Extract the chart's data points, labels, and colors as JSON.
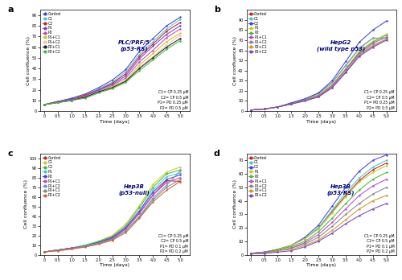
{
  "time": [
    0,
    0.5,
    1.0,
    1.5,
    2.0,
    2.5,
    3.0,
    3.5,
    4.0,
    4.5,
    5.0
  ],
  "panel_a": {
    "title": "PLC/PRF/5\n(p53-RS)",
    "note": "C1= CP 0.25 μM\nC2= CP 0.5 μM\nP1= PD 0.25 μM\nP2= PD 0.5 μM",
    "ylim": [
      0,
      95
    ],
    "yticks": [
      0,
      10,
      20,
      30,
      40,
      50,
      60,
      70,
      80,
      90
    ],
    "series": [
      {
        "name": "Control",
        "color": "#4444dd",
        "data": [
          6,
          9,
          12,
          16,
          22,
          29,
          39,
          56,
          68,
          80,
          88
        ]
      },
      {
        "name": "C1",
        "color": "#44cccc",
        "data": [
          6,
          9,
          11,
          15,
          21,
          27,
          37,
          53,
          65,
          77,
          86
        ]
      },
      {
        "name": "C2",
        "color": "#cc2222",
        "data": [
          6,
          9,
          11,
          15,
          20,
          26,
          35,
          51,
          63,
          75,
          83
        ]
      },
      {
        "name": "P1",
        "color": "#7744cc",
        "data": [
          6,
          9,
          11,
          14,
          20,
          25,
          33,
          49,
          61,
          72,
          80
        ]
      },
      {
        "name": "P2",
        "color": "#cc44cc",
        "data": [
          6,
          8,
          10,
          14,
          19,
          24,
          31,
          46,
          57,
          69,
          77
        ]
      },
      {
        "name": "P1+C1",
        "color": "#cccc22",
        "data": [
          6,
          8,
          10,
          13,
          18,
          23,
          29,
          43,
          54,
          65,
          73
        ]
      },
      {
        "name": "P1+C2",
        "color": "#ffbbaa",
        "data": [
          6,
          8,
          10,
          13,
          18,
          22,
          28,
          41,
          51,
          62,
          71
        ]
      },
      {
        "name": "P2+C1",
        "color": "#222222",
        "data": [
          6,
          8,
          10,
          13,
          18,
          22,
          28,
          40,
          50,
          60,
          68
        ]
      },
      {
        "name": "P2+C2",
        "color": "#44bb44",
        "data": [
          6,
          8,
          10,
          12,
          17,
          21,
          27,
          38,
          48,
          58,
          66
        ]
      }
    ]
  },
  "panel_b": {
    "title": "HepG2\n(wild type p53)",
    "note": "C1= CP 0.25 μM\nC2= CP 0.5 μM\nP1= PD 0.25 μM\nP2= PD 0.5 μM",
    "ylim": [
      0,
      100
    ],
    "yticks": [
      0,
      10,
      20,
      30,
      40,
      50,
      60,
      70,
      80,
      90
    ],
    "series": [
      {
        "name": "Control",
        "color": "#cc2222",
        "data": [
          1,
          2,
          4,
          8,
          12,
          17,
          28,
          45,
          62,
          72,
          72
        ]
      },
      {
        "name": "C1",
        "color": "#44cccc",
        "data": [
          1,
          2,
          4,
          8,
          12,
          17,
          28,
          45,
          62,
          72,
          72
        ]
      },
      {
        "name": "C2",
        "color": "#4444dd",
        "data": [
          1,
          2,
          4,
          8,
          12,
          18,
          30,
          49,
          68,
          80,
          89
        ]
      },
      {
        "name": "P1",
        "color": "#cccc22",
        "data": [
          1,
          2,
          4,
          7,
          11,
          16,
          26,
          42,
          59,
          69,
          76
        ]
      },
      {
        "name": "P2",
        "color": "#44bb44",
        "data": [
          1,
          2,
          4,
          7,
          11,
          15,
          25,
          41,
          58,
          68,
          75
        ]
      },
      {
        "name": "P1+C1",
        "color": "#cc44cc",
        "data": [
          1,
          2,
          4,
          7,
          11,
          15,
          25,
          41,
          57,
          67,
          73
        ]
      },
      {
        "name": "P1+C2",
        "color": "#888888",
        "data": [
          1,
          2,
          4,
          7,
          11,
          14,
          24,
          39,
          56,
          65,
          71
        ]
      },
      {
        "name": "P2+C1",
        "color": "#cc9922",
        "data": [
          1,
          2,
          4,
          7,
          10,
          14,
          23,
          38,
          55,
          64,
          71
        ]
      },
      {
        "name": "P2+C2",
        "color": "#7744cc",
        "data": [
          1,
          2,
          4,
          7,
          10,
          14,
          23,
          38,
          54,
          63,
          70
        ]
      }
    ]
  },
  "panel_c": {
    "title": "Hep3B\n(p53-null)",
    "note": "C1= CP 0.25 μM\nC2= CP 0.5 μM\nP1= PD 0.1 μM\nP2= PD 0.2 μM",
    "ylim": [
      0,
      105
    ],
    "yticks": [
      0,
      10,
      20,
      30,
      40,
      50,
      60,
      70,
      80,
      90,
      100
    ],
    "series": [
      {
        "name": "Control",
        "color": "#cc2222",
        "data": [
          3,
          5,
          7,
          9,
          12,
          17,
          27,
          43,
          62,
          77,
          76
        ]
      },
      {
        "name": "C1",
        "color": "#cccc22",
        "data": [
          3,
          5,
          7,
          10,
          14,
          20,
          32,
          51,
          73,
          86,
          91
        ]
      },
      {
        "name": "C2",
        "color": "#44bb44",
        "data": [
          3,
          5,
          7,
          10,
          14,
          19,
          30,
          49,
          70,
          84,
          88
        ]
      },
      {
        "name": "P1",
        "color": "#44cccc",
        "data": [
          3,
          5,
          7,
          10,
          13,
          18,
          29,
          46,
          67,
          81,
          85
        ]
      },
      {
        "name": "P2",
        "color": "#4444dd",
        "data": [
          3,
          5,
          7,
          9,
          13,
          18,
          28,
          45,
          65,
          78,
          83
        ]
      },
      {
        "name": "P1+C1",
        "color": "#cc44cc",
        "data": [
          3,
          5,
          7,
          9,
          12,
          17,
          27,
          43,
          62,
          75,
          80
        ]
      },
      {
        "name": "P1+C2",
        "color": "#6699cc",
        "data": [
          3,
          5,
          6,
          9,
          12,
          16,
          25,
          40,
          59,
          72,
          87
        ]
      },
      {
        "name": "P2+C1",
        "color": "#888888",
        "data": [
          3,
          5,
          6,
          9,
          12,
          16,
          25,
          39,
          57,
          70,
          78
        ]
      },
      {
        "name": "P2+C2",
        "color": "#cc6633",
        "data": [
          3,
          4,
          6,
          8,
          11,
          15,
          23,
          38,
          55,
          67,
          76
        ]
      }
    ]
  },
  "panel_d": {
    "title": "Hep3B\n(p53-RS)",
    "note": "C1= CP 0.25 μM\nC2= CP 0.5 μM\nP1= PD 0.1 μM\nP2= PD 0.2 μM",
    "ylim": [
      0,
      75
    ],
    "yticks": [
      0,
      10,
      20,
      30,
      40,
      50,
      60,
      70
    ],
    "series": [
      {
        "name": "Control",
        "color": "#cc2222",
        "data": [
          1,
          2,
          4,
          7,
          12,
          20,
          32,
          44,
          55,
          63,
          68
        ]
      },
      {
        "name": "C1",
        "color": "#44cccc",
        "data": [
          1,
          2,
          4,
          7,
          12,
          20,
          33,
          46,
          57,
          65,
          70
        ]
      },
      {
        "name": "C2",
        "color": "#4444dd",
        "data": [
          1,
          2,
          4,
          7,
          13,
          22,
          36,
          50,
          62,
          70,
          74
        ]
      },
      {
        "name": "P1",
        "color": "#cccc22",
        "data": [
          1,
          2,
          4,
          7,
          12,
          19,
          31,
          43,
          54,
          61,
          66
        ]
      },
      {
        "name": "P2",
        "color": "#44bb44",
        "data": [
          1,
          2,
          4,
          6,
          10,
          17,
          27,
          38,
          48,
          56,
          61
        ]
      },
      {
        "name": "P1+C1",
        "color": "#cc44cc",
        "data": [
          1,
          2,
          3,
          5,
          9,
          15,
          24,
          34,
          44,
          51,
          56
        ]
      },
      {
        "name": "P1+C2",
        "color": "#888888",
        "data": [
          1,
          2,
          3,
          5,
          8,
          13,
          21,
          30,
          38,
          45,
          50
        ]
      },
      {
        "name": "P2+C1",
        "color": "#cc9922",
        "data": [
          1,
          1,
          3,
          4,
          7,
          11,
          18,
          26,
          34,
          40,
          44
        ]
      },
      {
        "name": "P2+C2",
        "color": "#7744cc",
        "data": [
          1,
          1,
          2,
          3,
          6,
          10,
          16,
          23,
          29,
          34,
          38
        ]
      }
    ]
  }
}
